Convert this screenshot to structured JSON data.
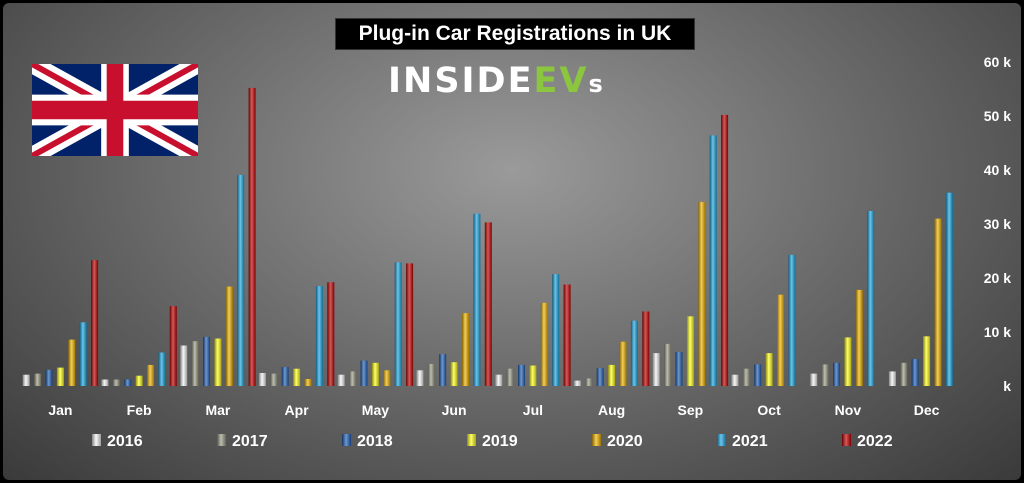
{
  "header": {
    "title": "Plug-in Car Registrations in UK",
    "logo_main": "INSIDE",
    "logo_accent": "EV",
    "logo_suffix": "s"
  },
  "colors": {
    "2016": "#f2f2f2",
    "2017": "#9a9a86",
    "2018": "#1f5fb4",
    "2019": "#ffff1a",
    "2020": "#f0b400",
    "2021": "#1ba6e0",
    "2022": "#c00000"
  },
  "chart_data": {
    "type": "bar",
    "title": "Plug-in Car Registrations in UK",
    "categories": [
      "Jan",
      "Feb",
      "Mar",
      "Apr",
      "May",
      "Jun",
      "Jul",
      "Aug",
      "Sep",
      "Oct",
      "Nov",
      "Dec"
    ],
    "ylim": [
      0,
      60000
    ],
    "yticks": [
      0,
      10000,
      20000,
      30000,
      40000,
      50000,
      60000
    ],
    "ytick_labels": [
      "k",
      "10 k",
      "20 k",
      "30 k",
      "40 k",
      "50 k",
      "60 k"
    ],
    "yaxis_position": "right",
    "grid": false,
    "legend_position": "bottom",
    "series": [
      {
        "name": "2016",
        "values": [
          2100,
          1200,
          7500,
          2400,
          2100,
          2900,
          2100,
          1000,
          6100,
          2100,
          2300,
          2700
        ]
      },
      {
        "name": "2017",
        "values": [
          2300,
          1200,
          8300,
          2300,
          2700,
          4100,
          3200,
          1400,
          7800,
          3200,
          4000,
          4300
        ]
      },
      {
        "name": "2018",
        "values": [
          3000,
          1200,
          9100,
          3500,
          4700,
          5900,
          3900,
          3300,
          6300,
          4000,
          4300,
          5000
        ]
      },
      {
        "name": "2019",
        "values": [
          3400,
          1900,
          8800,
          3200,
          4300,
          4400,
          3800,
          3900,
          12900,
          6100,
          9000,
          9200
        ]
      },
      {
        "name": "2020",
        "values": [
          8600,
          3900,
          18400,
          1300,
          2900,
          13500,
          15400,
          8200,
          34100,
          16900,
          17800,
          31000
        ]
      },
      {
        "name": "2021",
        "values": [
          11800,
          6200,
          39100,
          18500,
          22900,
          31900,
          20700,
          12100,
          46400,
          24300,
          32400,
          35800
        ]
      },
      {
        "name": "2022",
        "values": [
          23300,
          14800,
          55200,
          19200,
          22700,
          30300,
          18800,
          13800,
          50200,
          null,
          null,
          null
        ]
      }
    ]
  }
}
